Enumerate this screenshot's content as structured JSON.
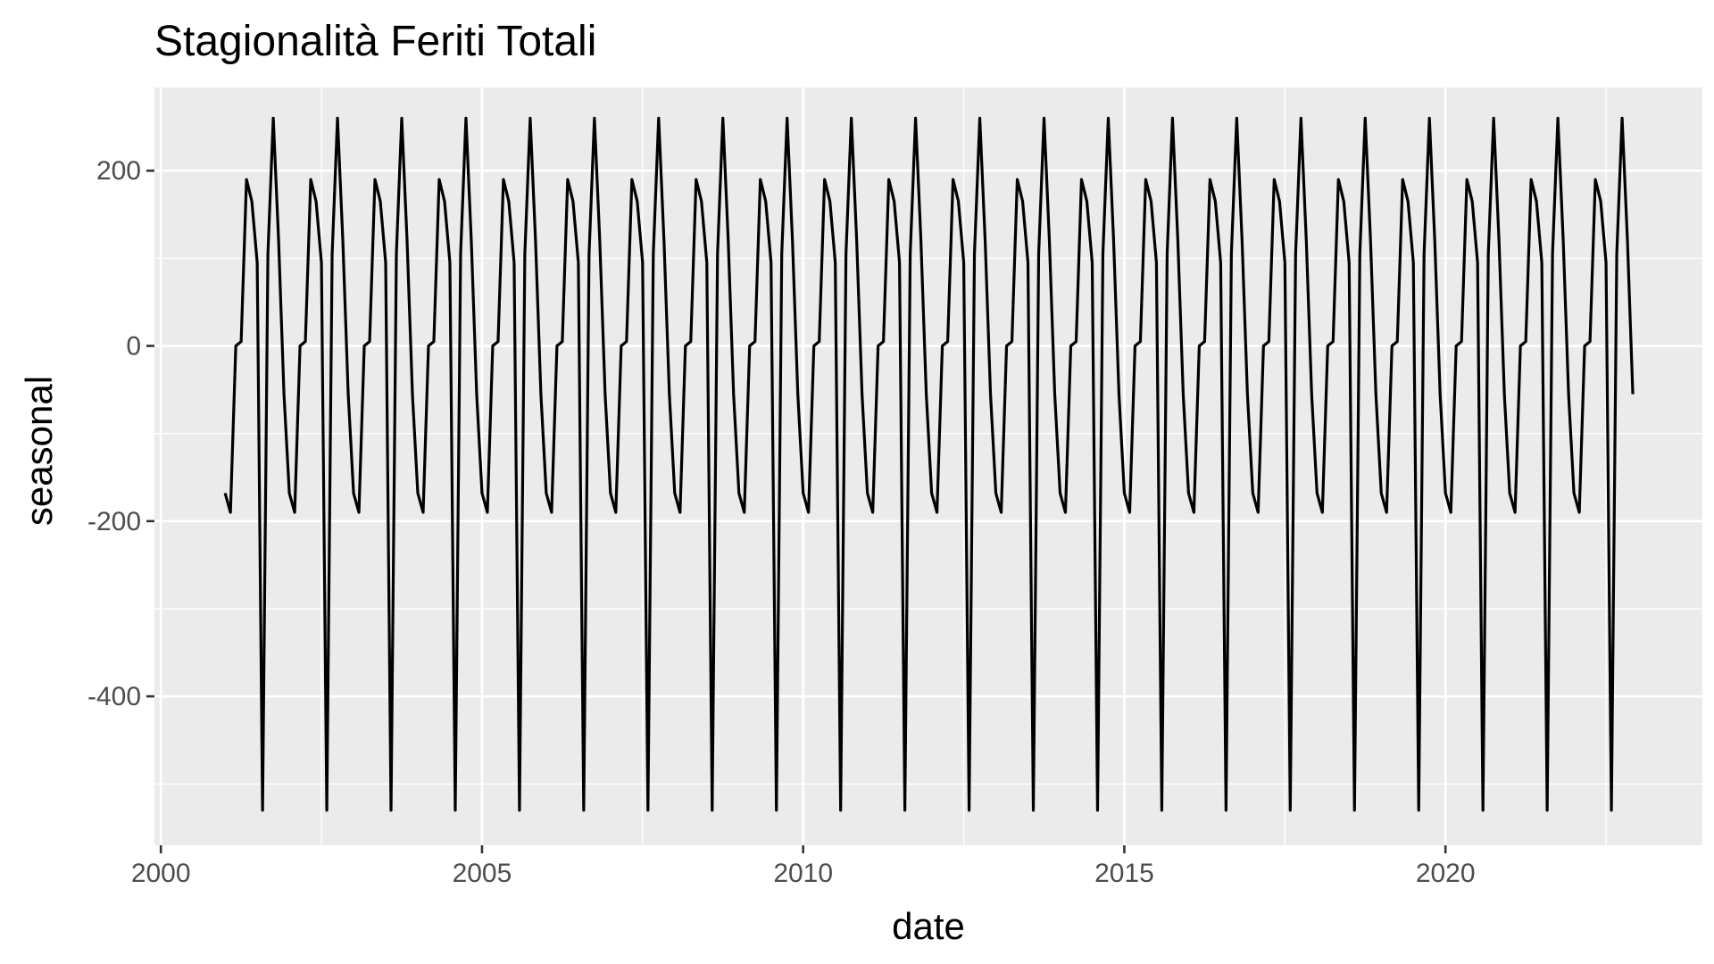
{
  "chart_data": {
    "type": "line",
    "title": "Stagionalità Feriti Totali",
    "xlabel": "date",
    "ylabel": "seasonal",
    "x_ticks": [
      2000,
      2005,
      2010,
      2015,
      2020
    ],
    "x_tick_labels": [
      "2000",
      "2005",
      "2010",
      "2015",
      "2020"
    ],
    "y_ticks": [
      -400,
      -200,
      0,
      200
    ],
    "y_tick_labels": [
      "-400",
      "-200",
      "0",
      "200"
    ],
    "xlim": [
      1999.9,
      2024.0
    ],
    "ylim": [
      -570,
      295
    ],
    "grid": true,
    "panel_background": "#ebebeb",
    "series": [
      {
        "frequency": "monthly",
        "start": "2001-01",
        "end": "2022-12",
        "monthly_pattern": [
          {
            "month": "Jan",
            "value": -168
          },
          {
            "month": "Feb",
            "value": -190
          },
          {
            "month": "Mar",
            "value": 0
          },
          {
            "month": "Apr",
            "value": 5
          },
          {
            "month": "May",
            "value": 190
          },
          {
            "month": "Jun",
            "value": 165
          },
          {
            "month": "Jul",
            "value": 95
          },
          {
            "month": "Aug",
            "value": -530
          },
          {
            "month": "Sep",
            "value": 105
          },
          {
            "month": "Oct",
            "value": 260
          },
          {
            "month": "Nov",
            "value": 120
          },
          {
            "month": "Dec",
            "value": -55
          }
        ],
        "color": "#000000"
      }
    ]
  }
}
